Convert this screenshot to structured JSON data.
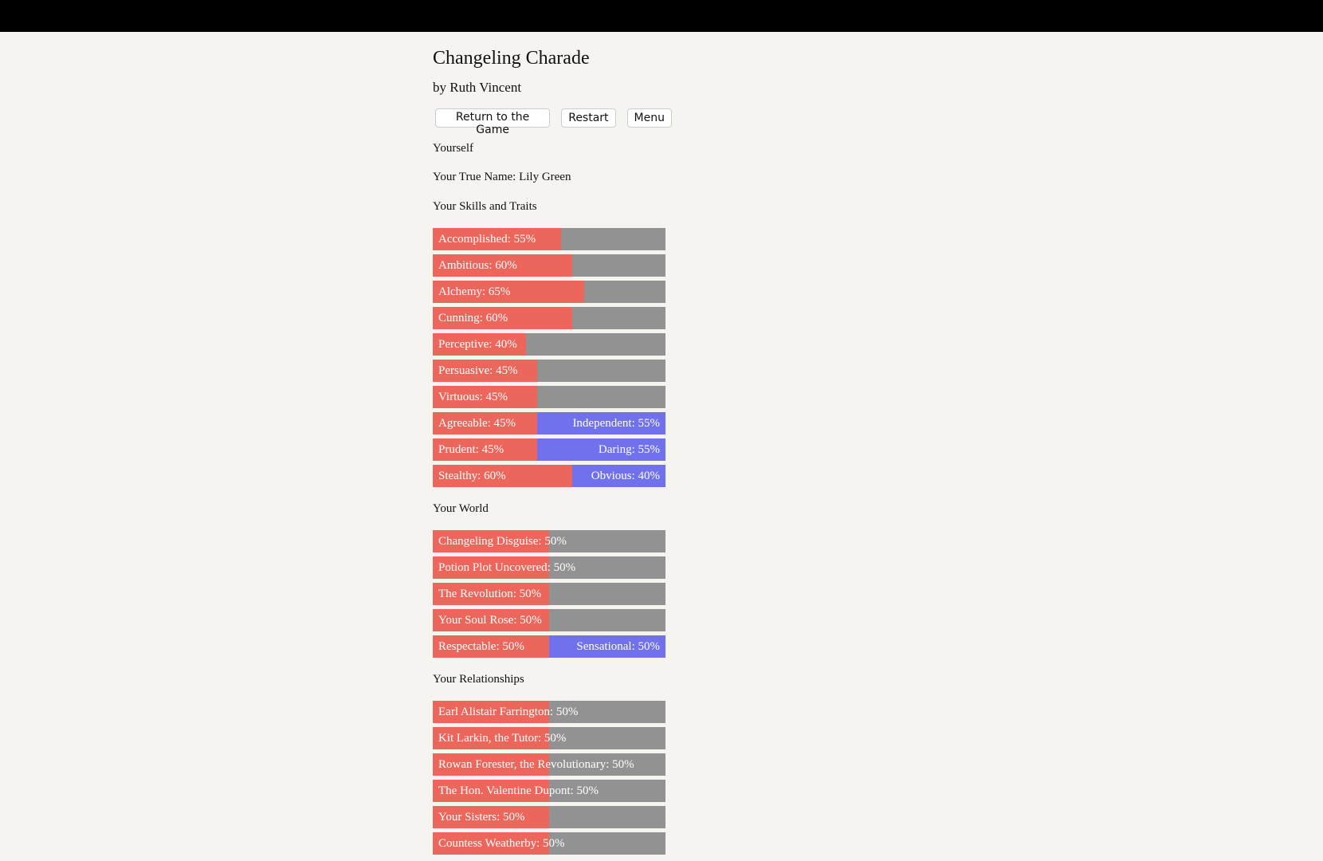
{
  "header": {
    "title": "Changeling Charade",
    "byline": "by Ruth Vincent"
  },
  "buttons": [
    "Return to the Game",
    "Restart",
    "Menu"
  ],
  "sections": [
    {
      "heading": "Yourself",
      "lines": [
        "Your True Name: Lily Green"
      ]
    },
    {
      "heading": "Your Skills and Traits",
      "bars": [
        {
          "text": "Accomplished: 55%",
          "value": 55
        },
        {
          "text": "Ambitious: 60%",
          "value": 60
        },
        {
          "text": "Alchemy: 65%",
          "value": 65
        },
        {
          "text": "Cunning: 60%",
          "value": 60
        },
        {
          "text": "Perceptive: 40%",
          "value": 40
        },
        {
          "text": "Persuasive: 45%",
          "value": 45
        },
        {
          "text": "Virtuous: 45%",
          "value": 45
        },
        {
          "text": "Agreeable: 45%",
          "value": 45,
          "right_text": "Independent: 55%",
          "right_value": 55
        },
        {
          "text": "Prudent: 45%",
          "value": 45,
          "right_text": "Daring: 55%",
          "right_value": 55
        },
        {
          "text": "Stealthy: 60%",
          "value": 60,
          "right_text": "Obvious: 40%",
          "right_value": 40
        }
      ]
    },
    {
      "heading": "Your World",
      "bars": [
        {
          "text": "Changeling Disguise: 50%",
          "value": 50
        },
        {
          "text": "Potion Plot Uncovered: 50%",
          "value": 50
        },
        {
          "text": "The Revolution: 50%",
          "value": 50
        },
        {
          "text": "Your Soul Rose: 50%",
          "value": 50
        },
        {
          "text": "Respectable: 50%",
          "value": 50,
          "right_text": "Sensational: 50%",
          "right_value": 50
        }
      ]
    },
    {
      "heading": "Your Relationships",
      "bars": [
        {
          "text": "Earl Alistair Farrington: 50%",
          "value": 50
        },
        {
          "text": "Kit Larkin, the Tutor: 50%",
          "value": 50
        },
        {
          "text": "Rowan Forester, the Revolutionary: 50%",
          "value": 50
        },
        {
          "text": "The Hon. Valentine Dupont: 50%",
          "value": 50
        },
        {
          "text": "Your Sisters: 50%",
          "value": 50
        },
        {
          "text": "Countess Weatherby: 50%",
          "value": 50
        }
      ]
    }
  ]
}
